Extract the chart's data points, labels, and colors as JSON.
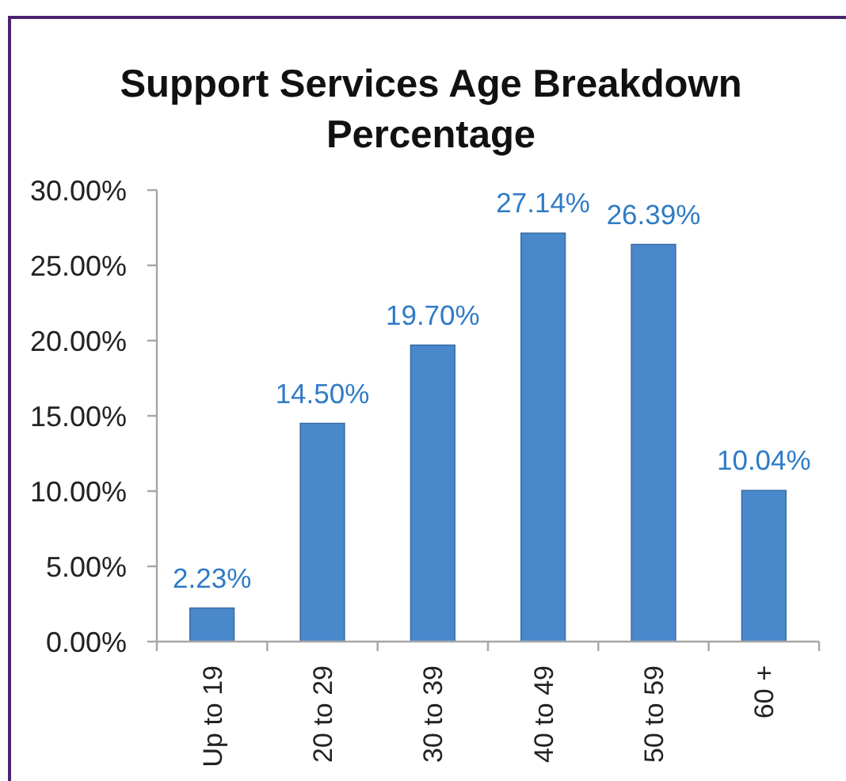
{
  "chart_data": {
    "type": "bar",
    "title": "Support Services Age Breakdown Percentage",
    "categories": [
      "Up to 19",
      "20 to 29",
      "30 to 39",
      "40 to 49",
      "50 to 59",
      "60 +"
    ],
    "values": [
      2.23,
      14.5,
      19.7,
      27.14,
      26.39,
      10.04
    ],
    "value_labels": [
      "2.23%",
      "14.50%",
      "19.70%",
      "27.14%",
      "26.39%",
      "10.04%"
    ],
    "color": "#4a88cc",
    "ylim": [
      0,
      30
    ],
    "yticks": [
      {
        "value": 0,
        "label": "0.00%"
      },
      {
        "value": 5,
        "label": "5.00%"
      },
      {
        "value": 10,
        "label": "10.00%"
      },
      {
        "value": 15,
        "label": "15.00%"
      },
      {
        "value": 20,
        "label": "20.00%"
      },
      {
        "value": 25,
        "label": "25.00%"
      },
      {
        "value": 30,
        "label": "30.00%"
      }
    ],
    "grid": false
  }
}
